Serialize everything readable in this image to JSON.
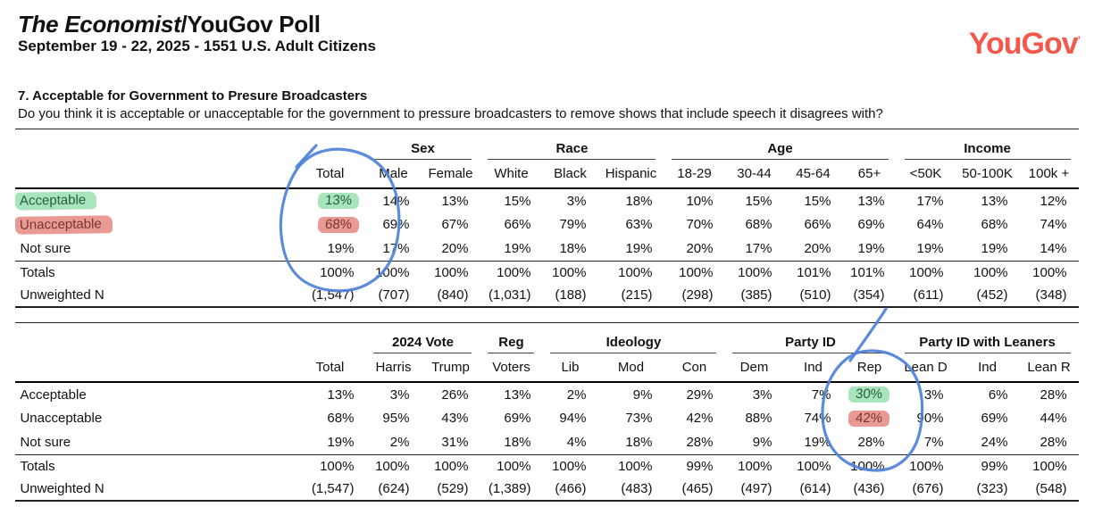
{
  "header": {
    "title_main": "The Economist",
    "title_suffix": "/YouGov Poll",
    "subtitle": "September 19 - 22, 2025 - 1551 U.S. Adult Citizens",
    "logo_text": "YouGov",
    "logo_mark": "’",
    "logo_color": "#f4584c"
  },
  "question": {
    "title": "7. Acceptable for Government to Presure Broadcasters",
    "text": "Do you think it is acceptable or unacceptable for the government to pressure broadcasters to remove shows that include speech it disagrees with?"
  },
  "table1": {
    "groups": [
      {
        "label": "",
        "cols": [
          "Total"
        ]
      },
      {
        "label": "Sex",
        "cols": [
          "Male",
          "Female"
        ]
      },
      {
        "label": "Race",
        "cols": [
          "White",
          "Black",
          "Hispanic"
        ]
      },
      {
        "label": "Age",
        "cols": [
          "18-29",
          "30-44",
          "45-64",
          "65+"
        ]
      },
      {
        "label": "Income",
        "cols": [
          "<50K",
          "50-100K",
          "100k +"
        ]
      }
    ],
    "rows": [
      {
        "label": "Acceptable",
        "values": [
          "13%",
          "14%",
          "13%",
          "15%",
          "3%",
          "18%",
          "10%",
          "15%",
          "15%",
          "13%",
          "17%",
          "13%",
          "12%"
        ]
      },
      {
        "label": "Unacceptable",
        "values": [
          "68%",
          "69%",
          "67%",
          "66%",
          "79%",
          "63%",
          "70%",
          "68%",
          "66%",
          "69%",
          "64%",
          "68%",
          "74%"
        ]
      },
      {
        "label": "Not sure",
        "values": [
          "19%",
          "17%",
          "20%",
          "19%",
          "18%",
          "19%",
          "20%",
          "17%",
          "20%",
          "19%",
          "19%",
          "19%",
          "14%"
        ]
      }
    ],
    "totals": {
      "label": "Totals",
      "values": [
        "100%",
        "100%",
        "100%",
        "100%",
        "100%",
        "100%",
        "100%",
        "100%",
        "101%",
        "101%",
        "100%",
        "100%",
        "100%"
      ]
    },
    "unweighted": {
      "label": "Unweighted N",
      "values": [
        "(1,547)",
        "(707)",
        "(840)",
        "(1,031)",
        "(188)",
        "(215)",
        "(298)",
        "(385)",
        "(510)",
        "(354)",
        "(611)",
        "(452)",
        "(348)"
      ]
    }
  },
  "table2": {
    "groups": [
      {
        "label": "",
        "cols": [
          "Total"
        ]
      },
      {
        "label": "2024 Vote",
        "cols": [
          "Harris",
          "Trump"
        ]
      },
      {
        "label": "Reg",
        "cols": [
          "Voters"
        ]
      },
      {
        "label": "Ideology",
        "cols": [
          "Lib",
          "Mod",
          "Con"
        ]
      },
      {
        "label": "Party ID",
        "cols": [
          "Dem",
          "Ind",
          "Rep"
        ]
      },
      {
        "label": "Party ID with Leaners",
        "cols": [
          "Lean D",
          "Ind",
          "Lean R"
        ]
      }
    ],
    "rows": [
      {
        "label": "Acceptable",
        "values": [
          "13%",
          "3%",
          "26%",
          "13%",
          "2%",
          "9%",
          "29%",
          "3%",
          "7%",
          "30%",
          "3%",
          "6%",
          "28%"
        ]
      },
      {
        "label": "Unacceptable",
        "values": [
          "68%",
          "95%",
          "43%",
          "69%",
          "94%",
          "73%",
          "42%",
          "88%",
          "74%",
          "42%",
          "90%",
          "69%",
          "44%"
        ]
      },
      {
        "label": "Not sure",
        "values": [
          "19%",
          "2%",
          "31%",
          "18%",
          "4%",
          "18%",
          "28%",
          "9%",
          "19%",
          "28%",
          "7%",
          "24%",
          "28%"
        ]
      }
    ],
    "totals": {
      "label": "Totals",
      "values": [
        "100%",
        "100%",
        "100%",
        "100%",
        "100%",
        "100%",
        "99%",
        "100%",
        "100%",
        "100%",
        "100%",
        "99%",
        "100%"
      ]
    },
    "unweighted": {
      "label": "Unweighted N",
      "values": [
        "(1,547)",
        "(624)",
        "(529)",
        "(1,389)",
        "(466)",
        "(483)",
        "(465)",
        "(497)",
        "(614)",
        "(436)",
        "(676)",
        "(323)",
        "(548)"
      ]
    }
  },
  "annotations": {
    "green_hex": "#a8e5bc",
    "red_hex": "#ea9a94",
    "blue_hex": "#4f81d8",
    "table1": {
      "label_hl": {
        "0": "green",
        "1": "red"
      },
      "cell_hl": [
        [
          0,
          0,
          "green"
        ],
        [
          1,
          0,
          "red"
        ]
      ],
      "circled_column": "Total"
    },
    "table2": {
      "cell_hl": [
        [
          0,
          9,
          "green"
        ],
        [
          1,
          9,
          "red"
        ]
      ],
      "circled_column": "Rep"
    }
  }
}
